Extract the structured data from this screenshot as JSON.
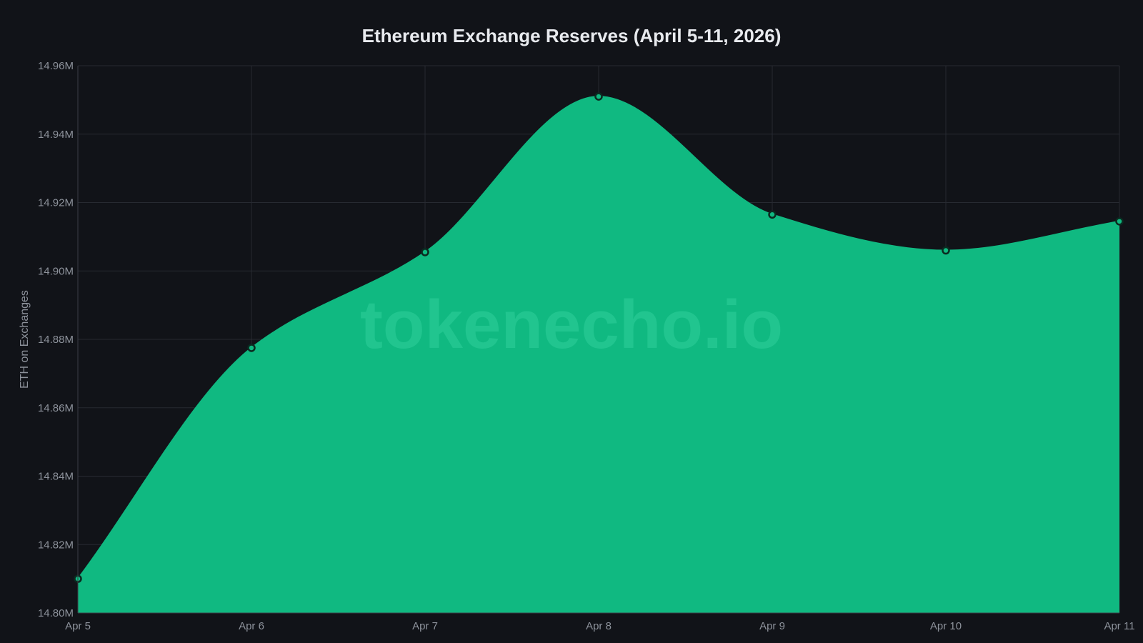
{
  "chart_data": {
    "type": "area",
    "title": "Ethereum Exchange Reserves (April 5-11, 2026)",
    "xlabel": "",
    "ylabel": "ETH on Exchanges",
    "categories": [
      "Apr 5",
      "Apr 6",
      "Apr 7",
      "Apr 8",
      "Apr 9",
      "Apr 10",
      "Apr 11"
    ],
    "values": [
      14810000,
      14877500,
      14905500,
      14951000,
      14916500,
      14906000,
      14914500
    ],
    "ylim": [
      14800000,
      14960000
    ],
    "yticks": [
      14800000,
      14820000,
      14840000,
      14860000,
      14880000,
      14900000,
      14920000,
      14940000,
      14960000
    ],
    "ytick_labels": [
      "14.80M",
      "14.82M",
      "14.84M",
      "14.86M",
      "14.88M",
      "14.90M",
      "14.92M",
      "14.94M",
      "14.96M"
    ],
    "grid": true,
    "legend": "none",
    "smooth": true,
    "watermark": "tokenecho.io",
    "colors": {
      "background": "#111318",
      "area_fill": "#10b981",
      "line": "#10b981",
      "marker_fill": "#10b981",
      "marker_stroke": "#0b2a20",
      "grid": "#272a31",
      "axis": "#3a3e46",
      "tick_text": "#8d929b",
      "title_text": "#e8eaee",
      "watermark": "#2fd09a"
    }
  }
}
